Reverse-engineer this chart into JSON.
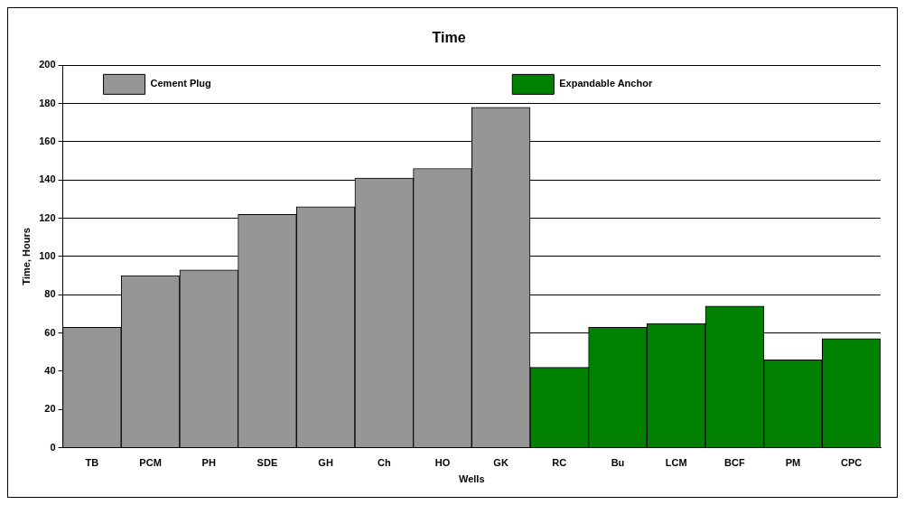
{
  "chart_data": {
    "type": "bar",
    "title": "Time",
    "xlabel": "Wells",
    "ylabel": "Time, Hours",
    "categories": [
      "TB",
      "PCM",
      "PH",
      "SDE",
      "GH",
      "Ch",
      "HO",
      "GK",
      "RC",
      "Bu",
      "LCM",
      "BCF",
      "PM",
      "CPC"
    ],
    "series": [
      {
        "name": "Cement Plug",
        "color": "#969696",
        "values": [
          63,
          90,
          93,
          122,
          126,
          141,
          146,
          178,
          null,
          null,
          null,
          null,
          null,
          null
        ]
      },
      {
        "name": "Expandable Anchor",
        "color": "#008000",
        "values": [
          null,
          null,
          null,
          null,
          null,
          null,
          null,
          null,
          42,
          63,
          65,
          74,
          46,
          57
        ]
      }
    ],
    "ylim": [
      0,
      200
    ],
    "yticks": [
      0,
      20,
      40,
      60,
      80,
      100,
      120,
      140,
      160,
      180,
      200
    ],
    "grid": "y",
    "legend": "top"
  }
}
